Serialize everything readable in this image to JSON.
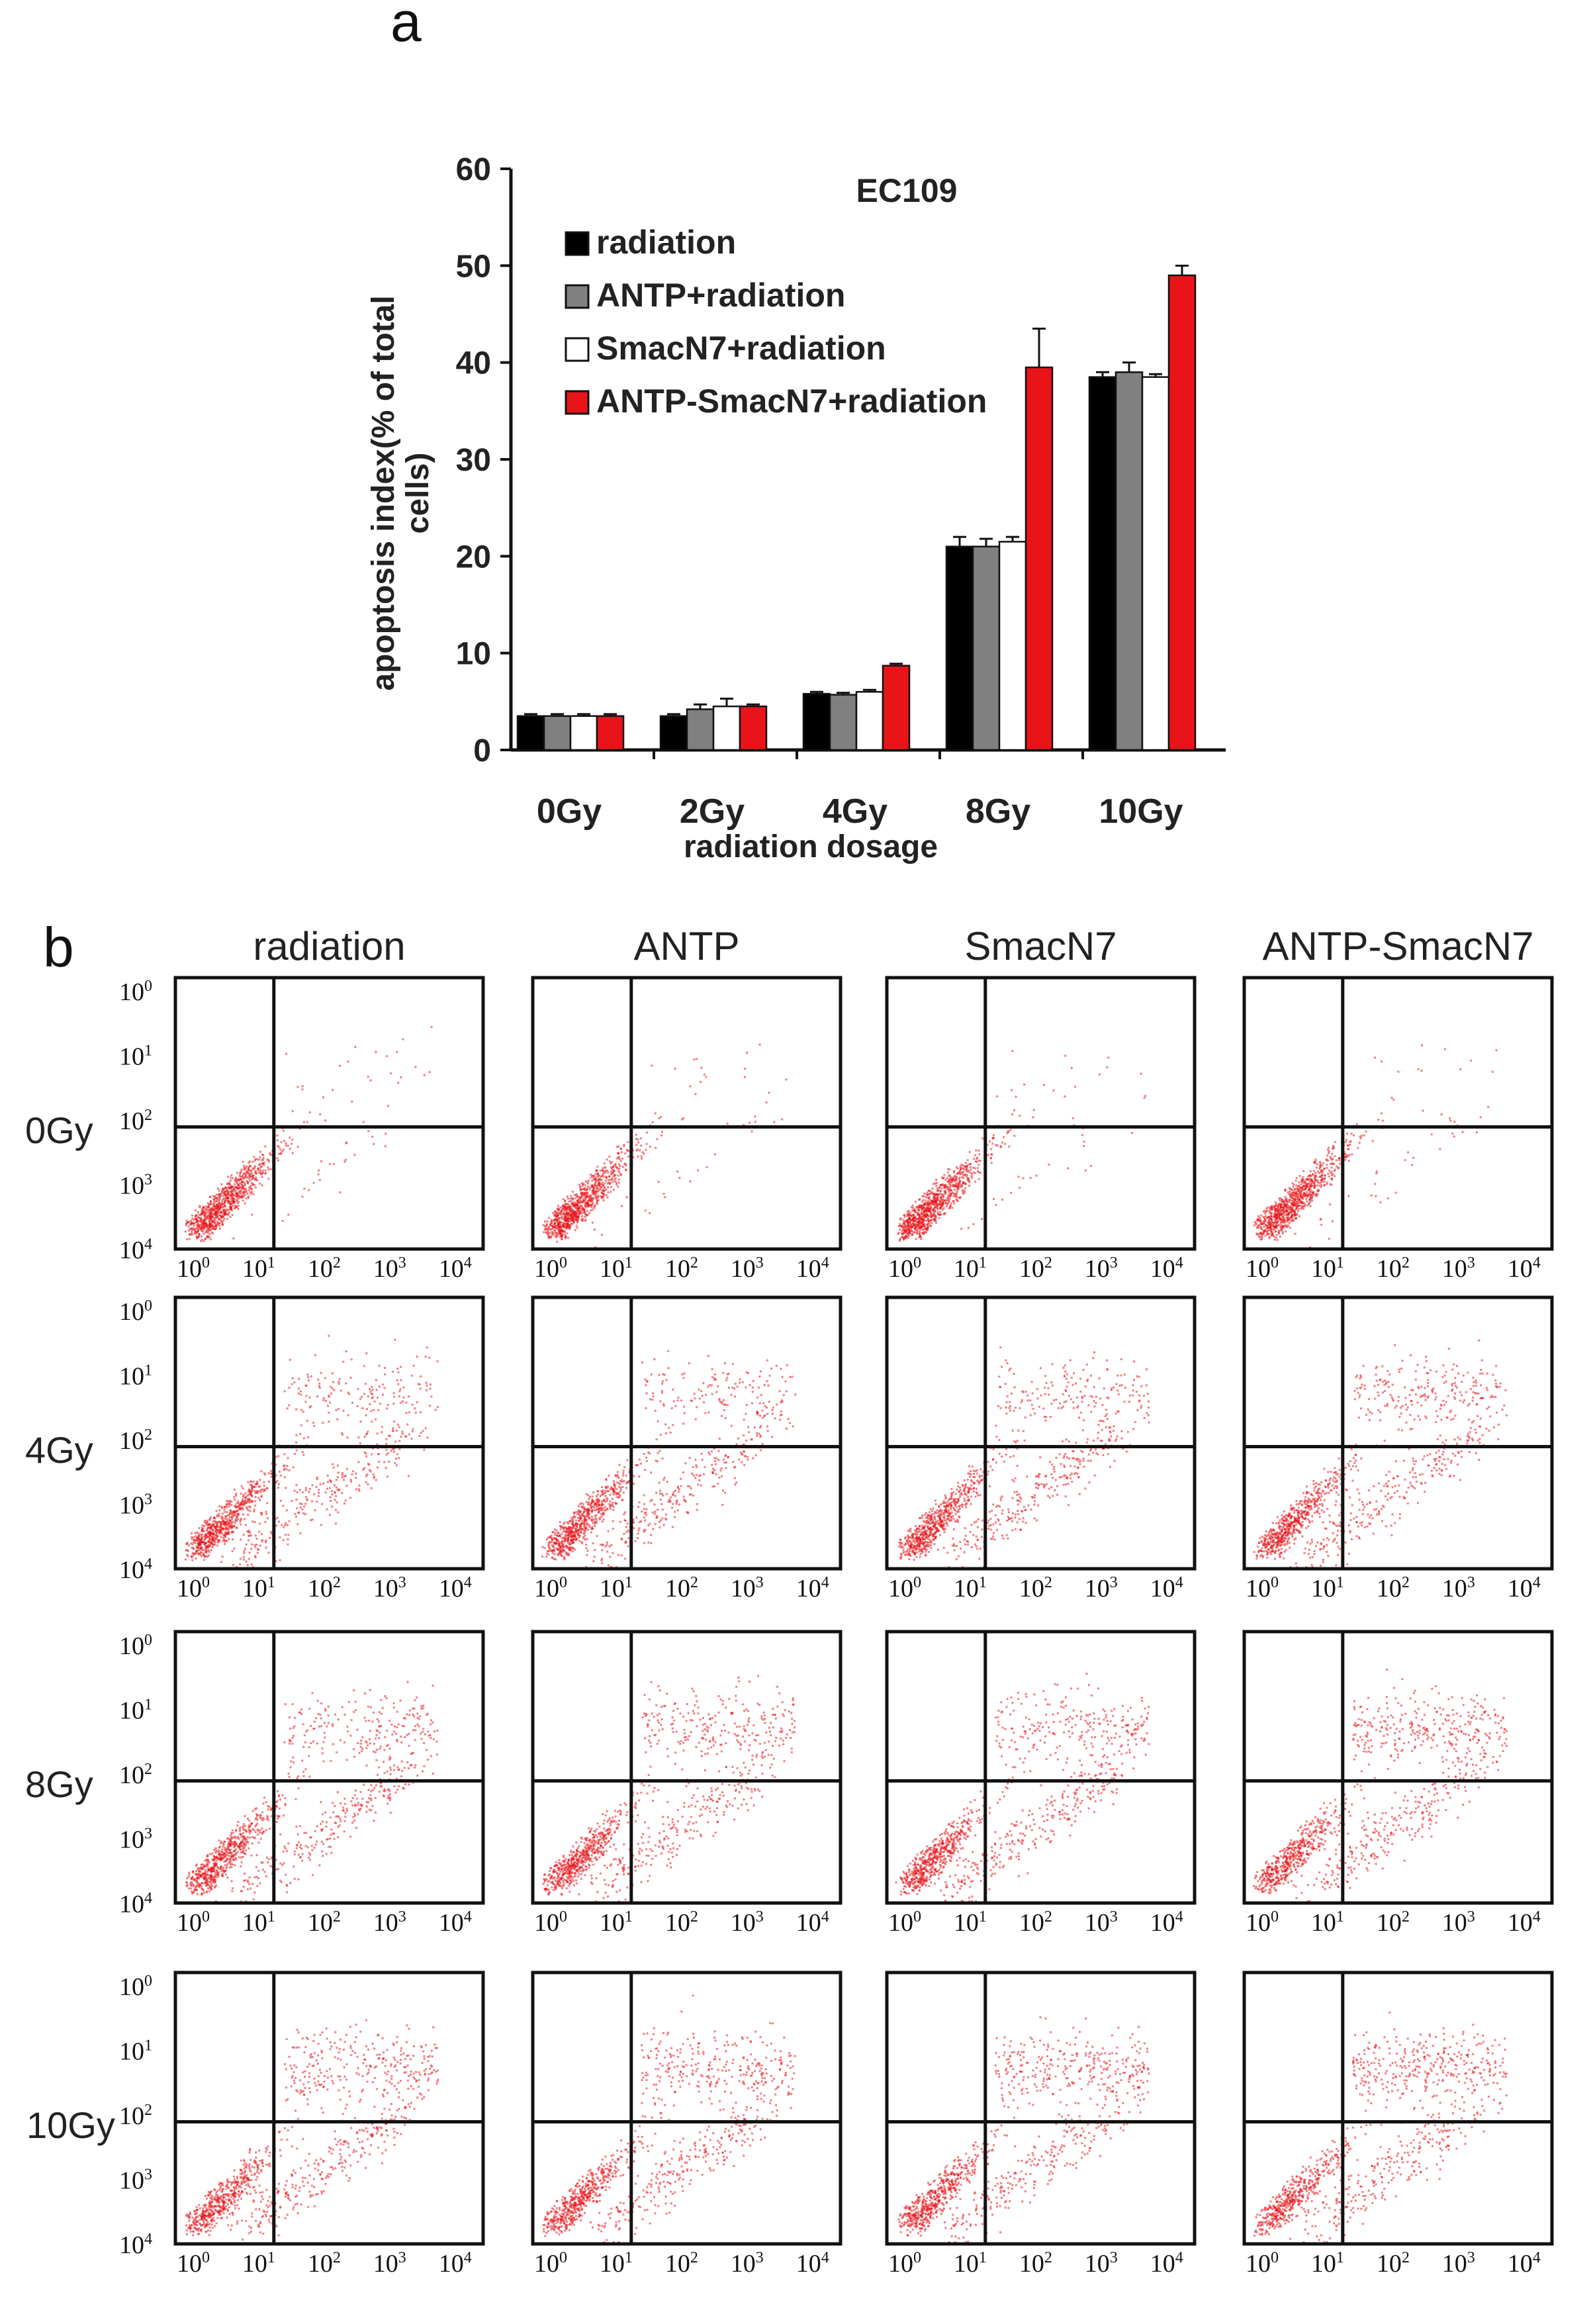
{
  "panels": {
    "a_label": "a",
    "b_label": "b"
  },
  "chart_data": [
    {
      "type": "bar",
      "title": "EC109",
      "xlabel": "radiation dosage",
      "ylabel": "apoptosis index(% of total cells)",
      "ylabel_lines": [
        "apoptosis index(% of total",
        "cells)"
      ],
      "categories": [
        "0Gy",
        "2Gy",
        "4Gy",
        "8Gy",
        "10Gy"
      ],
      "ylim": [
        0,
        60
      ],
      "yticks": [
        "0",
        "10",
        "20",
        "30",
        "40",
        "50",
        "60"
      ],
      "legend_position": "top-left",
      "grid": false,
      "series": [
        {
          "name": "radiation",
          "color": "#000000",
          "values": [
            3.5,
            3.5,
            5.8,
            21.0,
            38.5
          ],
          "errors": [
            0.2,
            0.2,
            0.2,
            1.0,
            0.5
          ]
        },
        {
          "name": "ANTP+radiation",
          "color": "#808080",
          "values": [
            3.5,
            4.2,
            5.7,
            21.0,
            39.0
          ],
          "errors": [
            0.2,
            0.5,
            0.2,
            0.8,
            1.0
          ]
        },
        {
          "name": "SmacN7+radiation",
          "color": "#ffffff",
          "values": [
            3.5,
            4.5,
            6.0,
            21.5,
            38.5
          ],
          "errors": [
            0.2,
            0.8,
            0.2,
            0.5,
            0.3
          ]
        },
        {
          "name": "ANTP-SmacN7+radiation",
          "color": "#e8141a",
          "values": [
            3.5,
            4.5,
            8.7,
            39.5,
            49.0
          ],
          "errors": [
            0.2,
            0.2,
            0.2,
            4.0,
            1.0
          ]
        }
      ]
    },
    {
      "type": "scatter",
      "description_grid": "flow cytometry dot plots",
      "columns": [
        "radiation",
        "ANTP",
        "SmacN7",
        "ANTP-SmacN7"
      ],
      "rows": [
        "0Gy",
        "4Gy",
        "8Gy",
        "10Gy"
      ],
      "x_tick_base": [
        "10",
        "10",
        "10",
        "10",
        "10"
      ],
      "x_tick_exp": [
        "0",
        "1",
        "2",
        "3",
        "4"
      ],
      "y_tick_base": [
        "10",
        "10",
        "10",
        "10",
        "10"
      ],
      "y_tick_exp": [
        "0",
        "1",
        "2",
        "3",
        "4"
      ],
      "dot_color": "#e8141a"
    }
  ]
}
